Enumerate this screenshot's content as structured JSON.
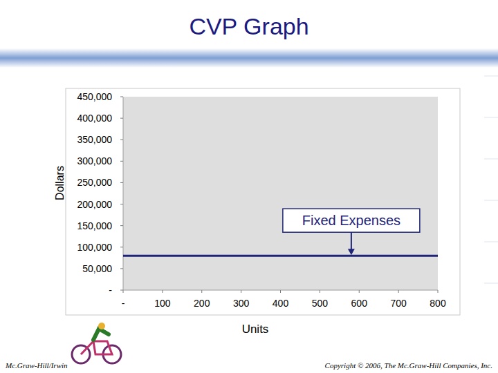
{
  "chart_data": {
    "type": "line",
    "title": "CVP Graph",
    "x_label": "Units",
    "y_label": "Dollars",
    "series": [
      {
        "x": [
          0,
          800
        ],
        "values": [
          80000,
          80000
        ],
        "color": "#1f2477"
      }
    ],
    "xlim": [
      0,
      800
    ],
    "xticks": [
      {
        "value": 0,
        "label": "-"
      },
      100,
      200,
      300,
      400,
      500,
      600,
      700,
      800
    ],
    "ylim": [
      0,
      450000
    ],
    "yticks": [
      {
        "value": 0,
        "label": "-"
      },
      {
        "value": 50000,
        "label": "50,000"
      },
      {
        "value": 100000,
        "label": "100,000"
      },
      {
        "value": 150000,
        "label": "150,000"
      },
      {
        "value": 200000,
        "label": "200,000"
      },
      {
        "value": 250000,
        "label": "250,000"
      },
      {
        "value": 300000,
        "label": "300,000"
      },
      {
        "value": 350000,
        "label": "350,000"
      },
      {
        "value": 400000,
        "label": "400,000"
      },
      {
        "value": 450000,
        "label": "450,000"
      }
    ],
    "grid": false,
    "annotations": [
      {
        "text": "Fixed Expenses",
        "x": 580,
        "y": 80000
      }
    ]
  },
  "footer": {
    "left": "Mc.Graw-Hill/Irwin",
    "right": "Copyright © 2006, The Mc.Graw-Hill Companies, Inc."
  }
}
